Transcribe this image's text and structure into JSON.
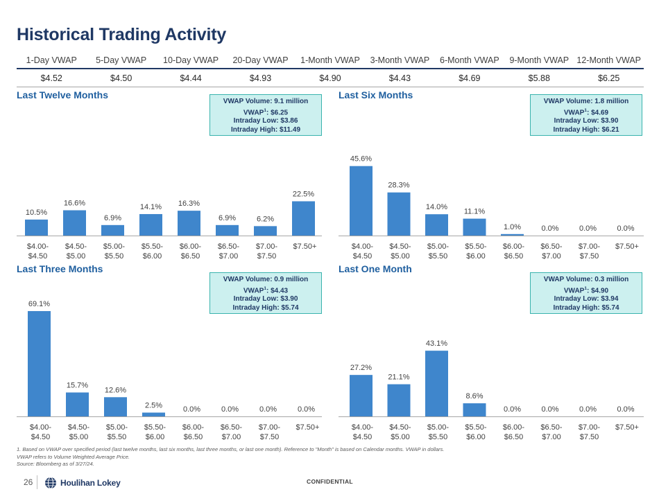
{
  "title": "Historical Trading Activity",
  "vwap_table": {
    "headers": [
      "1-Day VWAP",
      "5-Day VWAP",
      "10-Day VWAP",
      "20-Day VWAP",
      "1-Month VWAP",
      "3-Month VWAP",
      "6-Month VWAP",
      "9-Month VWAP",
      "12-Month VWAP"
    ],
    "values": [
      "$4.52",
      "$4.50",
      "$4.44",
      "$4.93",
      "$4.90",
      "$4.43",
      "$4.69",
      "$5.88",
      "$6.25"
    ]
  },
  "panels": [
    {
      "title": "Last Twelve Months",
      "callout": {
        "volume": "VWAP Volume: 9.1 million",
        "vwap_prefix": "VWAP",
        "vwap_sup": "1",
        "vwap_value": ": $6.25",
        "low": "Intraday Low: $3.86",
        "high": "Intraday High: $11.49"
      }
    },
    {
      "title": "Last Six Months",
      "callout": {
        "volume": "VWAP Volume: 1.8 million",
        "vwap_prefix": "VWAP",
        "vwap_sup": "1",
        "vwap_value": ": $4.69",
        "low": "Intraday Low: $3.90",
        "high": "Intraday High: $6.21"
      }
    },
    {
      "title": "Last Three Months",
      "callout": {
        "volume": "VWAP Volume: 0.9 million",
        "vwap_prefix": "VWAP",
        "vwap_sup": "1",
        "vwap_value": ": $4.43",
        "low": "Intraday Low: $3.90",
        "high": "Intraday High: $5.74"
      }
    },
    {
      "title": "Last One Month",
      "callout": {
        "volume": "VWAP Volume: 0.3 million",
        "vwap_prefix": "VWAP",
        "vwap_sup": "1",
        "vwap_value": ": $4.90",
        "low": "Intraday Low: $3.94",
        "high": "Intraday High: $5.74"
      }
    }
  ],
  "chart_data": [
    {
      "type": "bar",
      "title": "Last Twelve Months",
      "categories": [
        [
          "$4.00-",
          "$4.50"
        ],
        [
          "$4.50-",
          "$5.00"
        ],
        [
          "$5.00-",
          "$5.50"
        ],
        [
          "$5.50-",
          "$6.00"
        ],
        [
          "$6.00-",
          "$6.50"
        ],
        [
          "$6.50-",
          "$7.00"
        ],
        [
          "$7.00-",
          "$7.50"
        ],
        [
          "$7.50+",
          ""
        ]
      ],
      "values": [
        10.5,
        16.6,
        6.9,
        14.1,
        16.3,
        6.9,
        6.2,
        22.5
      ],
      "labels": [
        "10.5%",
        "16.6%",
        "6.9%",
        "14.1%",
        "16.3%",
        "6.9%",
        "6.2%",
        "22.5%"
      ],
      "ylim": [
        0,
        70
      ],
      "bar_color": "#3f86cc"
    },
    {
      "type": "bar",
      "title": "Last Six Months",
      "categories": [
        [
          "$4.00-",
          "$4.50"
        ],
        [
          "$4.50-",
          "$5.00"
        ],
        [
          "$5.00-",
          "$5.50"
        ],
        [
          "$5.50-",
          "$6.00"
        ],
        [
          "$6.00-",
          "$6.50"
        ],
        [
          "$6.50-",
          "$7.00"
        ],
        [
          "$7.00-",
          "$7.50"
        ],
        [
          "$7.50+",
          ""
        ]
      ],
      "values": [
        45.6,
        28.3,
        14.0,
        11.1,
        1.0,
        0.0,
        0.0,
        0.0
      ],
      "labels": [
        "45.6%",
        "28.3%",
        "14.0%",
        "11.1%",
        "1.0%",
        "0.0%",
        "0.0%",
        "0.0%"
      ],
      "ylim": [
        0,
        70
      ],
      "bar_color": "#3f86cc"
    },
    {
      "type": "bar",
      "title": "Last Three Months",
      "categories": [
        [
          "$4.00-",
          "$4.50"
        ],
        [
          "$4.50-",
          "$5.00"
        ],
        [
          "$5.00-",
          "$5.50"
        ],
        [
          "$5.50-",
          "$6.00"
        ],
        [
          "$6.00-",
          "$6.50"
        ],
        [
          "$6.50-",
          "$7.00"
        ],
        [
          "$7.00-",
          "$7.50"
        ],
        [
          "$7.50+",
          ""
        ]
      ],
      "values": [
        69.1,
        15.7,
        12.6,
        2.5,
        0.0,
        0.0,
        0.0,
        0.0
      ],
      "labels": [
        "69.1%",
        "15.7%",
        "12.6%",
        "2.5%",
        "0.0%",
        "0.0%",
        "0.0%",
        "0.0%"
      ],
      "ylim": [
        0,
        70
      ],
      "bar_color": "#3f86cc"
    },
    {
      "type": "bar",
      "title": "Last One Month",
      "categories": [
        [
          "$4.00-",
          "$4.50"
        ],
        [
          "$4.50-",
          "$5.00"
        ],
        [
          "$5.00-",
          "$5.50"
        ],
        [
          "$5.50-",
          "$6.00"
        ],
        [
          "$6.00-",
          "$6.50"
        ],
        [
          "$6.50-",
          "$7.00"
        ],
        [
          "$7.00-",
          "$7.50"
        ],
        [
          "$7.50+",
          ""
        ]
      ],
      "values": [
        27.2,
        21.1,
        43.1,
        8.6,
        0.0,
        0.0,
        0.0,
        0.0
      ],
      "labels": [
        "27.2%",
        "21.1%",
        "43.1%",
        "8.6%",
        "0.0%",
        "0.0%",
        "0.0%",
        "0.0%"
      ],
      "ylim": [
        0,
        70
      ],
      "bar_color": "#3f86cc"
    }
  ],
  "footnotes": [
    "1. Based on VWAP over specified period (last twelve months, last six months, last three months, or last one month). Reference to \"Month\" is based on Calendar months. VWAP in dollars.",
    "VWAP refers to Volume Weighted Average Price.",
    "Source: Bloomberg as of 3/27/24."
  ],
  "footer": {
    "page_number": "26",
    "brand": "Houlihan Lokey",
    "confidential": "CONFIDENTIAL"
  },
  "colors": {
    "title": "#1f3864",
    "section": "#1f5f9f",
    "bar": "#3f86cc",
    "callout_bg": "#ccf0ef",
    "callout_border": "#39b3ad"
  }
}
